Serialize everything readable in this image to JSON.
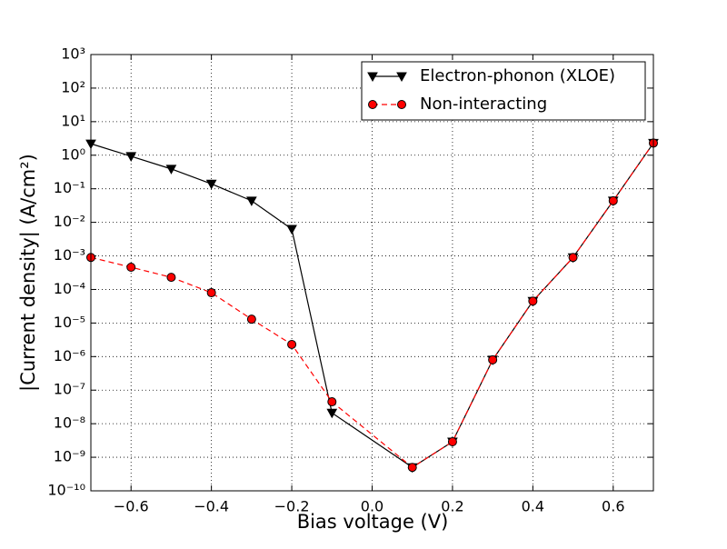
{
  "chart_data": {
    "type": "line",
    "xlabel": "Bias voltage  (V)",
    "ylabel": "|Current density|  (A/cm²)",
    "x": [
      -0.7,
      -0.6,
      -0.5,
      -0.4,
      -0.3,
      -0.2,
      -0.1,
      0.1,
      0.2,
      0.3,
      0.4,
      0.5,
      0.6,
      0.7
    ],
    "series": [
      {
        "name": "Electron-phonon (XLOE)",
        "color": "#000000",
        "marker": "triangle-down",
        "dash": false,
        "values": [
          2.2,
          0.93,
          0.39,
          0.14,
          0.044,
          0.0063,
          2.1e-08,
          5e-10,
          2.9e-09,
          8e-07,
          4.5e-05,
          0.0009,
          0.044,
          2.3
        ]
      },
      {
        "name": "Non-interacting",
        "color": "#ff0000",
        "marker": "circle",
        "dash": true,
        "values": [
          0.0009,
          0.00046,
          0.00023,
          8e-05,
          1.3e-05,
          2.3e-06,
          4.5e-08,
          5e-10,
          2.9e-09,
          8e-07,
          4.5e-05,
          0.0009,
          0.044,
          2.3
        ]
      }
    ],
    "xlim": [
      -0.7,
      0.7
    ],
    "xticks": [
      {
        "value": -0.6,
        "label": "−0.6"
      },
      {
        "value": -0.4,
        "label": "−0.4"
      },
      {
        "value": -0.2,
        "label": "−0.2"
      },
      {
        "value": 0,
        "label": "0.0"
      },
      0.2,
      0.4,
      0.6
    ],
    "ylim": [
      1e-10,
      1000
    ],
    "yscale": "log",
    "yticks": [
      {
        "value": 1e-10,
        "label": "10⁻¹⁰"
      },
      {
        "value": 1e-09,
        "label": "10⁻⁹"
      },
      {
        "value": 1e-08,
        "label": "10⁻⁸"
      },
      {
        "value": 1e-07,
        "label": "10⁻⁷"
      },
      {
        "value": 1e-06,
        "label": "10⁻⁶"
      },
      {
        "value": 1e-05,
        "label": "10⁻⁵"
      },
      {
        "value": 0.0001,
        "label": "10⁻⁴"
      },
      {
        "value": 0.001,
        "label": "10⁻³"
      },
      {
        "value": 0.01,
        "label": "10⁻²"
      },
      {
        "value": 0.1,
        "label": "10⁻¹"
      },
      {
        "value": 1,
        "label": "10⁰"
      },
      {
        "value": 10,
        "label": "10¹"
      },
      {
        "value": 100,
        "label": "10²"
      },
      {
        "value": 1000,
        "label": "10³"
      }
    ],
    "grid": true,
    "legend": "upper-right"
  }
}
